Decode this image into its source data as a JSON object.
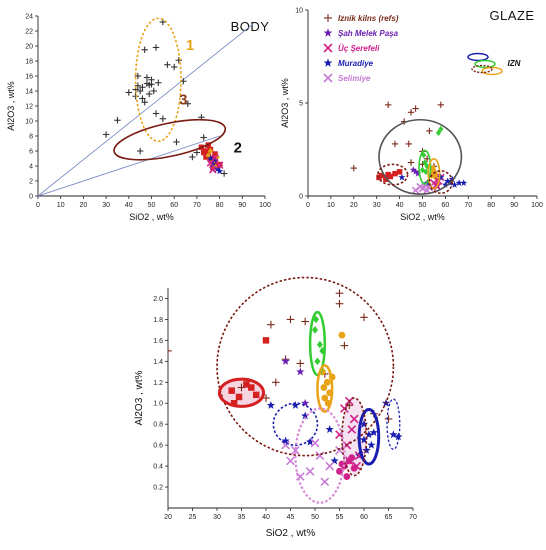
{
  "colors": {
    "kiln": "#7a2a1a",
    "sahmelek": "#6a1fb5",
    "ucserefeli": "#d0208a",
    "muradiye": "#1a1fb0",
    "selimiye": "#c77bd6",
    "red": "#d42020",
    "yellow_ring": "#e8a317",
    "brown_ring": "#7a1a10",
    "green_ring": "#33cc33",
    "blue_ring": "#1a1fb0"
  },
  "chart_data": [
    {
      "id": "body",
      "type": "scatter",
      "title": "BODY",
      "xlabel": "SiO2 , wt%",
      "ylabel": "Al2O3 , wt%",
      "xlim": [
        0,
        100
      ],
      "ylim": [
        0,
        24
      ],
      "xticks": [
        0,
        10,
        20,
        30,
        40,
        50,
        60,
        70,
        80,
        90,
        100
      ],
      "yticks": [
        0,
        2,
        4,
        6,
        8,
        10,
        12,
        14,
        16,
        18,
        20,
        22,
        24
      ],
      "group_labels": [
        {
          "text": "1",
          "x": 67,
          "y": 19.5,
          "color": "#e8a317"
        },
        {
          "text": "3",
          "x": 64,
          "y": 12.2,
          "color": "#8b3a1a"
        },
        {
          "text": "2",
          "x": 88,
          "y": 5.8,
          "color": "#111111"
        }
      ],
      "ref_lines": [
        {
          "x": [
            0,
            95
          ],
          "y": [
            0,
            23
          ]
        },
        {
          "x": [
            0,
            80
          ],
          "y": [
            0,
            8
          ]
        }
      ],
      "ellipses": [
        {
          "cx": 53,
          "cy": 15.5,
          "rx": 10,
          "ry": 8.2,
          "rot": 0,
          "color": "#e8a317",
          "dash": true
        },
        {
          "cx": 58,
          "cy": 7.5,
          "rx": 25,
          "ry": 2.2,
          "rot": 12,
          "color": "#7a1a10",
          "dash": false
        }
      ],
      "series": [
        {
          "marker": "plus",
          "color": "#333333",
          "x": [
            55,
            47,
            52,
            44,
            46,
            48,
            45,
            50,
            51,
            49,
            43,
            57,
            62,
            60,
            64,
            46,
            40,
            35,
            30,
            45,
            55,
            66,
            72,
            73,
            75,
            70,
            68,
            78,
            80,
            82,
            61,
            52,
            47,
            49,
            48,
            44,
            43,
            50,
            53
          ],
          "y": [
            23.2,
            19.5,
            19.8,
            16,
            14.5,
            15,
            14,
            15.5,
            14,
            14.8,
            14.2,
            17.5,
            18.1,
            17.2,
            15.3,
            13,
            13.8,
            10.1,
            8.2,
            6,
            10.3,
            12.3,
            10.5,
            7.8,
            6.5,
            5.8,
            5.2,
            5,
            4.1,
            3,
            7.2,
            11,
            12.5,
            13.6,
            15.8,
            14.7,
            13.3,
            14.9,
            15.1
          ]
        },
        {
          "marker": "square",
          "color": "#d42020",
          "x": [
            72,
            74,
            75,
            76,
            77,
            78,
            79,
            73,
            76,
            78,
            80,
            77,
            75,
            74
          ],
          "y": [
            6.5,
            6,
            5.5,
            6.2,
            5,
            4.5,
            4,
            5.8,
            4.8,
            5.6,
            4.2,
            3.8,
            6.8,
            5.2
          ]
        },
        {
          "marker": "diamond",
          "color": "#e8a317",
          "x": [
            75,
            77,
            79,
            76,
            78
          ],
          "y": [
            5.4,
            4.6,
            5.2,
            6,
            3.9
          ]
        },
        {
          "marker": "star",
          "color": "#1a1fb0",
          "x": [
            77,
            79,
            78,
            80,
            76
          ],
          "y": [
            4.2,
            3.6,
            4.8,
            3.3,
            5
          ]
        },
        {
          "marker": "x",
          "color": "#d0208a",
          "x": [
            76,
            78,
            80,
            77
          ],
          "y": [
            4.4,
            5.1,
            4.1,
            3.5
          ]
        }
      ]
    },
    {
      "id": "glaze",
      "type": "scatter",
      "title": "GLAZE",
      "xlabel": "SiO2 , wt%",
      "ylabel": "Al2O3 , wt%",
      "xlim": [
        0,
        100
      ],
      "ylim": [
        0,
        10
      ],
      "xticks": [
        0,
        10,
        20,
        30,
        40,
        50,
        60,
        70,
        80,
        90,
        100
      ],
      "yticks": [
        0,
        5,
        10
      ],
      "legend": [
        {
          "label": "Iznik kilns (refs)",
          "marker": "plus",
          "color": "#7a2a1a"
        },
        {
          "label": "Şah Melek Paşa",
          "marker": "star",
          "color": "#6a1fb5"
        },
        {
          "label": "Üç Şerefeli",
          "marker": "x",
          "color": "#d0208a"
        },
        {
          "label": "Muradiye",
          "marker": "star",
          "color": "#1a1fb0"
        },
        {
          "label": "Selimiye",
          "marker": "x",
          "color": "#c77bd6"
        }
      ],
      "legend_extra": "IZN",
      "ellipses": [
        {
          "cx": 49,
          "cy": 2.1,
          "rx": 18,
          "ry": 2,
          "rot": 0,
          "color": "#555555",
          "dash": false
        },
        {
          "cx": 37,
          "cy": 1.15,
          "rx": 6.5,
          "ry": 0.55,
          "rot": 0,
          "color": "#7a1a10",
          "dash": true
        },
        {
          "cx": 51,
          "cy": 1.55,
          "rx": 2.5,
          "ry": 0.9,
          "rot": 0,
          "color": "#33cc33",
          "dash": false
        },
        {
          "cx": 55,
          "cy": 1.2,
          "rx": 2.5,
          "ry": 0.8,
          "rot": 0,
          "color": "#e8a317",
          "dash": false
        },
        {
          "cx": 58,
          "cy": 0.75,
          "rx": 5,
          "ry": 0.6,
          "rot": 0,
          "color": "#7a1a10",
          "dash": true
        }
      ],
      "series": [
        {
          "marker": "plus",
          "color": "#7a2a1a",
          "x": [
            35,
            45,
            47,
            42,
            58,
            53,
            44,
            50,
            38,
            20,
            45,
            50,
            55,
            52
          ],
          "y": [
            4.9,
            4.5,
            4.7,
            4,
            4.9,
            3.5,
            2.8,
            2.4,
            2.8,
            1.5,
            1.8,
            1.7,
            1.6,
            2
          ],
          "name": "Iznik kilns (refs)"
        },
        {
          "marker": "square",
          "color": "#d42020",
          "x": [
            32,
            35,
            36,
            38,
            40,
            34,
            31
          ],
          "y": [
            1.1,
            1.15,
            1.05,
            1.2,
            1.3,
            0.9,
            1
          ],
          "name": ""
        },
        {
          "marker": "diamond",
          "color": "#33cc33",
          "x": [
            50,
            51,
            52,
            50.5,
            51.5,
            58,
            57
          ],
          "y": [
            1.4,
            1.8,
            1.6,
            2.2,
            1.3,
            3.6,
            3.4
          ],
          "name": ""
        },
        {
          "marker": "circle",
          "color": "#e8a317",
          "x": [
            54,
            55,
            56,
            54.5,
            55.5
          ],
          "y": [
            1.1,
            1.3,
            1,
            1.5,
            1.2
          ],
          "name": ""
        },
        {
          "marker": "star",
          "color": "#6a1fb5",
          "x": [
            46,
            47,
            48
          ],
          "y": [
            1.4,
            1.3,
            1.2
          ],
          "name": "Şah Melek Paşa"
        },
        {
          "marker": "x",
          "color": "#d0208a",
          "x": [
            55,
            56,
            57,
            58,
            56.5
          ],
          "y": [
            0.7,
            0.6,
            0.8,
            1,
            0.5
          ],
          "name": "Üç Şerefeli"
        },
        {
          "marker": "star",
          "color": "#1a1fb0",
          "x": [
            60,
            61,
            62,
            63,
            64,
            66,
            68,
            41,
            52,
            58
          ],
          "y": [
            0.6,
            0.8,
            0.7,
            0.9,
            0.6,
            0.7,
            0.7,
            1,
            0.7,
            1
          ],
          "name": "Muradiye"
        },
        {
          "marker": "x",
          "color": "#c77bd6",
          "x": [
            47,
            49,
            50,
            51,
            52,
            53
          ],
          "y": [
            0.3,
            0.5,
            0.4,
            0.6,
            0.3,
            0.45
          ],
          "name": "Selimiye"
        }
      ]
    },
    {
      "id": "zoom",
      "type": "scatter",
      "title": "",
      "xlabel": "SiO2 , wt%",
      "ylabel": "Al2O3 , wt%",
      "xlim": [
        20,
        70
      ],
      "ylim": [
        0,
        2.1
      ],
      "xticks": [
        20,
        25,
        30,
        35,
        40,
        45,
        50,
        55,
        60,
        65,
        70
      ],
      "yticks": [
        0.2,
        0.4,
        0.6,
        0.8,
        1.0,
        1.2,
        1.4,
        1.6,
        1.8,
        2.0
      ],
      "ellipses": [
        {
          "cx": 48,
          "cy": 1.35,
          "rx": 18,
          "ry": 0.85,
          "rot": 0,
          "color": "#7a1a10",
          "dash": true,
          "width": 1.6
        },
        {
          "cx": 35,
          "cy": 1.1,
          "rx": 4.5,
          "ry": 0.13,
          "rot": 0,
          "color": "#d42020",
          "dash": false,
          "width": 3,
          "fill": "#f3c6d6"
        },
        {
          "cx": 50.5,
          "cy": 1.57,
          "rx": 1.5,
          "ry": 0.3,
          "rot": 0,
          "color": "#33cc33",
          "dash": false,
          "width": 2.5
        },
        {
          "cx": 52,
          "cy": 1.14,
          "rx": 1.5,
          "ry": 0.22,
          "rot": 0,
          "color": "#e8a317",
          "dash": false,
          "width": 2.5
        },
        {
          "cx": 46,
          "cy": 0.8,
          "rx": 4.5,
          "ry": 0.2,
          "rot": 0,
          "color": "#1a1fb0",
          "dash": true,
          "width": 1.6
        },
        {
          "cx": 61,
          "cy": 0.68,
          "rx": 2,
          "ry": 0.26,
          "rot": 0,
          "color": "#1a1fb0",
          "dash": false,
          "width": 3
        },
        {
          "cx": 66,
          "cy": 0.8,
          "rx": 1.3,
          "ry": 0.24,
          "rot": 0,
          "color": "#1a1fb0",
          "dash": true,
          "width": 1.3
        },
        {
          "cx": 58,
          "cy": 0.68,
          "rx": 2.5,
          "ry": 0.37,
          "rot": 0,
          "color": "#7a1a10",
          "dash": true,
          "width": 1.6,
          "fill": "#f0d8ec"
        },
        {
          "cx": 51,
          "cy": 0.5,
          "rx": 5,
          "ry": 0.45,
          "rot": 0,
          "color": "#d98ad9",
          "dash": true,
          "width": 2.2
        }
      ],
      "series": [
        {
          "marker": "plus",
          "color": "#7a2a1a",
          "x": [
            20,
            41,
            45,
            48,
            55,
            55,
            60,
            56,
            42,
            35,
            40,
            44,
            47,
            52,
            57,
            62,
            65
          ],
          "y": [
            1.5,
            1.75,
            1.8,
            1.78,
            2.05,
            1.95,
            1.82,
            1.55,
            1.2,
            1.15,
            1.05,
            1.42,
            1.38,
            1.28,
            0.98,
            0.9,
            0.85
          ]
        },
        {
          "marker": "square",
          "color": "#d42020",
          "x": [
            40,
            33,
            36,
            37,
            38,
            33.5,
            34.5
          ],
          "y": [
            1.6,
            1.12,
            1.18,
            1.15,
            1.08,
            1,
            1.06
          ]
        },
        {
          "marker": "diamond",
          "color": "#33cc33",
          "x": [
            50,
            51,
            50.5,
            51.5,
            50.2
          ],
          "y": [
            1.7,
            1.56,
            1.4,
            1.5,
            1.8
          ]
        },
        {
          "marker": "circle",
          "color": "#e8a317",
          "x": [
            51.5,
            52.5,
            53,
            52,
            51.8,
            53.5,
            52.7,
            55.5
          ],
          "y": [
            1.3,
            1.2,
            1.1,
            1.05,
            1.15,
            1.25,
            1.0,
            1.65
          ]
        },
        {
          "marker": "star",
          "color": "#6a1fb5",
          "x": [
            44,
            47,
            48
          ],
          "y": [
            1.4,
            1.3,
            1.0
          ]
        },
        {
          "marker": "star",
          "color": "#1a1fb0",
          "x": [
            41,
            44,
            46,
            49,
            53,
            60,
            61,
            61.5,
            62,
            60.5,
            60,
            59,
            64.5,
            66,
            67,
            54,
            48
          ],
          "y": [
            0.98,
            0.64,
            0.98,
            0.63,
            0.75,
            0.8,
            0.7,
            0.6,
            0.72,
            0.55,
            0.65,
            0.5,
            1.0,
            0.7,
            0.68,
            0.45,
            0.88
          ]
        },
        {
          "marker": "x",
          "color": "#d0208a",
          "x": [
            56,
            57,
            58,
            57.5,
            56.5,
            58.5,
            55,
            57,
            59
          ],
          "y": [
            0.95,
            1.02,
            0.85,
            0.75,
            0.6,
            0.4,
            0.7,
            0.45,
            0.5
          ]
        },
        {
          "marker": "x",
          "color": "#c77bd6",
          "x": [
            45,
            47,
            49,
            51,
            53,
            55,
            44,
            46,
            52,
            50
          ],
          "y": [
            0.45,
            0.3,
            0.35,
            0.5,
            0.4,
            0.55,
            0.6,
            0.55,
            0.25,
            0.62
          ]
        },
        {
          "marker": "circle",
          "color": "#d0208a",
          "x": [
            55,
            56,
            57,
            58,
            56.5,
            57.5,
            55.5
          ],
          "y": [
            0.35,
            0.4,
            0.45,
            0.38,
            0.3,
            0.48,
            0.42
          ]
        }
      ]
    }
  ]
}
